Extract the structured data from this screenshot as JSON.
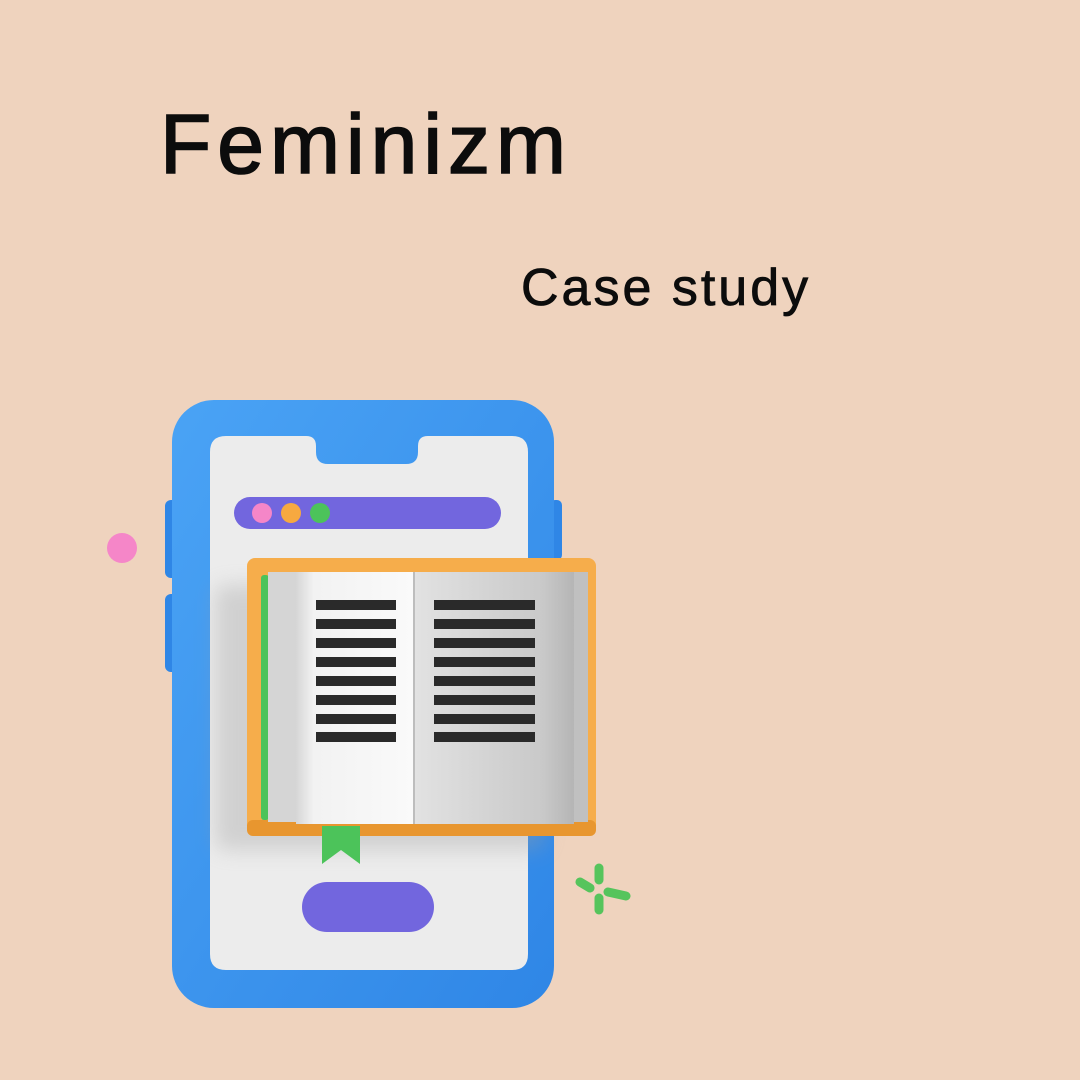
{
  "heading": {
    "title": "Feminizm",
    "subtitle": "Case study"
  },
  "illustration": {
    "device": "phone",
    "object": "open-book",
    "colors": {
      "background": "#efd3be",
      "phone_frame": "#3b95ee",
      "screen": "#ececec",
      "bar": "#7266de",
      "button": "#7266de",
      "book_cover": "#f6ad4b",
      "bookmark": "#4cc35a",
      "dot_pink": "#f586c8",
      "dot_orange": "#f7a940",
      "dot_green": "#4cc35a",
      "sparkle": "#56c45c"
    }
  }
}
